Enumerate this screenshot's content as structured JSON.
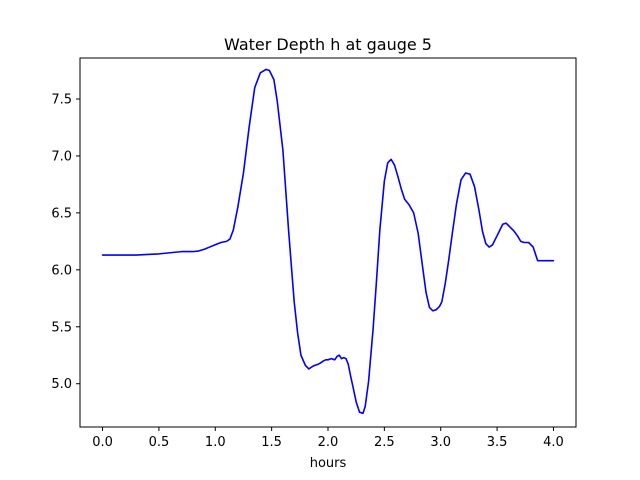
{
  "chart_data": {
    "type": "line",
    "title": "Water Depth h at gauge 5",
    "xlabel": "hours",
    "ylabel": "",
    "xlim": [
      -0.2,
      4.2
    ],
    "ylim": [
      4.62,
      7.86
    ],
    "xticks": [
      0.0,
      0.5,
      1.0,
      1.5,
      2.0,
      2.5,
      3.0,
      3.5,
      4.0
    ],
    "xtick_labels": [
      "0.0",
      "0.5",
      "1.0",
      "1.5",
      "2.0",
      "2.5",
      "3.0",
      "3.5",
      "4.0"
    ],
    "yticks": [
      5.0,
      5.5,
      6.0,
      6.5,
      7.0,
      7.5
    ],
    "ytick_labels": [
      "5.0",
      "5.5",
      "6.0",
      "6.5",
      "7.0",
      "7.5"
    ],
    "grid": false,
    "series": [
      {
        "color": "#0000ff",
        "x": [
          0.0,
          0.1,
          0.2,
          0.3,
          0.4,
          0.5,
          0.6,
          0.7,
          0.8,
          0.85,
          0.9,
          0.95,
          1.0,
          1.05,
          1.1,
          1.13,
          1.16,
          1.2,
          1.25,
          1.3,
          1.35,
          1.4,
          1.45,
          1.48,
          1.52,
          1.55,
          1.6,
          1.65,
          1.7,
          1.73,
          1.76,
          1.8,
          1.83,
          1.86,
          1.88,
          1.91,
          1.93,
          1.96,
          1.98,
          2.0,
          2.03,
          2.06,
          2.08,
          2.1,
          2.12,
          2.14,
          2.16,
          2.18,
          2.2,
          2.22,
          2.25,
          2.28,
          2.31,
          2.33,
          2.36,
          2.4,
          2.43,
          2.46,
          2.5,
          2.53,
          2.56,
          2.59,
          2.62,
          2.65,
          2.68,
          2.72,
          2.76,
          2.8,
          2.84,
          2.87,
          2.9,
          2.93,
          2.96,
          2.99,
          3.01,
          3.04,
          3.07,
          3.1,
          3.14,
          3.18,
          3.22,
          3.26,
          3.3,
          3.34,
          3.37,
          3.4,
          3.43,
          3.46,
          3.49,
          3.52,
          3.55,
          3.58,
          3.61,
          3.65,
          3.68,
          3.71,
          3.74,
          3.78,
          3.82,
          3.86,
          3.9,
          3.93,
          3.96,
          4.0
        ],
        "y": [
          6.13,
          6.13,
          6.13,
          6.13,
          6.135,
          6.14,
          6.15,
          6.16,
          6.16,
          6.165,
          6.18,
          6.2,
          6.22,
          6.24,
          6.25,
          6.27,
          6.35,
          6.55,
          6.85,
          7.25,
          7.6,
          7.73,
          7.76,
          7.75,
          7.67,
          7.48,
          7.05,
          6.35,
          5.72,
          5.45,
          5.25,
          5.16,
          5.13,
          5.15,
          5.16,
          5.17,
          5.18,
          5.2,
          5.21,
          5.21,
          5.22,
          5.21,
          5.24,
          5.25,
          5.22,
          5.23,
          5.22,
          5.17,
          5.07,
          4.98,
          4.84,
          4.75,
          4.74,
          4.8,
          5.02,
          5.48,
          5.9,
          6.35,
          6.78,
          6.94,
          6.97,
          6.92,
          6.82,
          6.71,
          6.62,
          6.57,
          6.5,
          6.32,
          6.02,
          5.8,
          5.67,
          5.64,
          5.65,
          5.68,
          5.72,
          5.88,
          6.08,
          6.3,
          6.58,
          6.79,
          6.85,
          6.84,
          6.73,
          6.52,
          6.34,
          6.23,
          6.2,
          6.22,
          6.28,
          6.34,
          6.4,
          6.41,
          6.38,
          6.34,
          6.3,
          6.25,
          6.24,
          6.24,
          6.2,
          6.08,
          6.08,
          6.08,
          6.08,
          6.08
        ]
      }
    ]
  }
}
